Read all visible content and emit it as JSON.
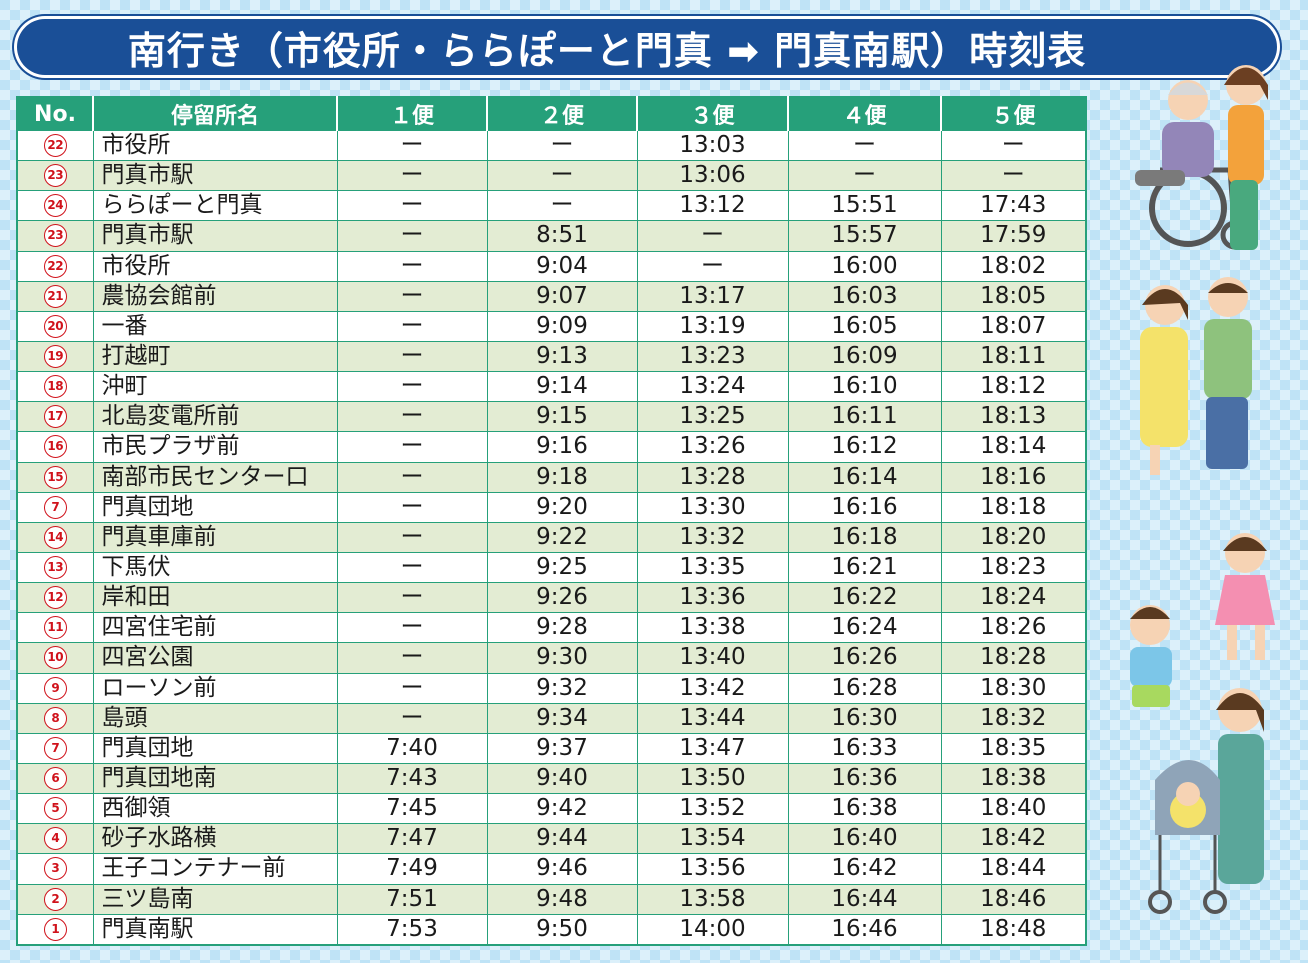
{
  "title": "南行き（市役所・ららぽーと門真 ➡ 門真南駅）時刻表",
  "headers": [
    "No.",
    "停留所名",
    "１便",
    "２便",
    "３便",
    "４便",
    "５便"
  ],
  "rows": [
    {
      "no": "22",
      "name": "市役所",
      "t": [
        "ー",
        "ー",
        "13:03",
        "ー",
        "ー"
      ]
    },
    {
      "no": "23",
      "name": "門真市駅",
      "t": [
        "ー",
        "ー",
        "13:06",
        "ー",
        "ー"
      ]
    },
    {
      "no": "24",
      "name": "ららぽーと門真",
      "t": [
        "ー",
        "ー",
        "13:12",
        "15:51",
        "17:43"
      ]
    },
    {
      "no": "23",
      "name": "門真市駅",
      "t": [
        "ー",
        "8:51",
        "ー",
        "15:57",
        "17:59"
      ]
    },
    {
      "no": "22",
      "name": "市役所",
      "t": [
        "ー",
        "9:04",
        "ー",
        "16:00",
        "18:02"
      ]
    },
    {
      "no": "21",
      "name": "農協会館前",
      "t": [
        "ー",
        "9:07",
        "13:17",
        "16:03",
        "18:05"
      ]
    },
    {
      "no": "20",
      "name": "一番",
      "t": [
        "ー",
        "9:09",
        "13:19",
        "16:05",
        "18:07"
      ]
    },
    {
      "no": "19",
      "name": "打越町",
      "t": [
        "ー",
        "9:13",
        "13:23",
        "16:09",
        "18:11"
      ]
    },
    {
      "no": "18",
      "name": "沖町",
      "t": [
        "ー",
        "9:14",
        "13:24",
        "16:10",
        "18:12"
      ]
    },
    {
      "no": "17",
      "name": "北島変電所前",
      "t": [
        "ー",
        "9:15",
        "13:25",
        "16:11",
        "18:13"
      ]
    },
    {
      "no": "16",
      "name": "市民プラザ前",
      "t": [
        "ー",
        "9:16",
        "13:26",
        "16:12",
        "18:14"
      ]
    },
    {
      "no": "15",
      "name": "南部市民センター口",
      "t": [
        "ー",
        "9:18",
        "13:28",
        "16:14",
        "18:16"
      ]
    },
    {
      "no": "7",
      "name": "門真団地",
      "t": [
        "ー",
        "9:20",
        "13:30",
        "16:16",
        "18:18"
      ]
    },
    {
      "no": "14",
      "name": "門真車庫前",
      "t": [
        "ー",
        "9:22",
        "13:32",
        "16:18",
        "18:20"
      ]
    },
    {
      "no": "13",
      "name": "下馬伏",
      "t": [
        "ー",
        "9:25",
        "13:35",
        "16:21",
        "18:23"
      ]
    },
    {
      "no": "12",
      "name": "岸和田",
      "t": [
        "ー",
        "9:26",
        "13:36",
        "16:22",
        "18:24"
      ]
    },
    {
      "no": "11",
      "name": "四宮住宅前",
      "t": [
        "ー",
        "9:28",
        "13:38",
        "16:24",
        "18:26"
      ]
    },
    {
      "no": "10",
      "name": "四宮公園",
      "t": [
        "ー",
        "9:30",
        "13:40",
        "16:26",
        "18:28"
      ]
    },
    {
      "no": "9",
      "name": "ローソン前",
      "t": [
        "ー",
        "9:32",
        "13:42",
        "16:28",
        "18:30"
      ]
    },
    {
      "no": "8",
      "name": "島頭",
      "t": [
        "ー",
        "9:34",
        "13:44",
        "16:30",
        "18:32"
      ]
    },
    {
      "no": "7",
      "name": "門真団地",
      "t": [
        "7:40",
        "9:37",
        "13:47",
        "16:33",
        "18:35"
      ]
    },
    {
      "no": "6",
      "name": "門真団地南",
      "t": [
        "7:43",
        "9:40",
        "13:50",
        "16:36",
        "18:38"
      ]
    },
    {
      "no": "5",
      "name": "西御領",
      "t": [
        "7:45",
        "9:42",
        "13:52",
        "16:38",
        "18:40"
      ]
    },
    {
      "no": "4",
      "name": "砂子水路横",
      "t": [
        "7:47",
        "9:44",
        "13:54",
        "16:40",
        "18:42"
      ]
    },
    {
      "no": "3",
      "name": "王子コンテナー前",
      "t": [
        "7:49",
        "9:46",
        "13:56",
        "16:42",
        "18:44"
      ]
    },
    {
      "no": "2",
      "name": "三ツ島南",
      "t": [
        "7:51",
        "9:48",
        "13:58",
        "16:44",
        "18:46"
      ]
    },
    {
      "no": "1",
      "name": "門真南駅",
      "t": [
        "7:53",
        "9:50",
        "14:00",
        "16:46",
        "18:48"
      ]
    }
  ],
  "colors": {
    "banner": "#1a4f97",
    "header": "#26a07a",
    "alt_row": "#e3ecd3",
    "stop_number": "#d0121b"
  },
  "illustrations": [
    "caregiver-with-wheelchair",
    "couple-walking",
    "running-children",
    "mother-with-stroller"
  ]
}
